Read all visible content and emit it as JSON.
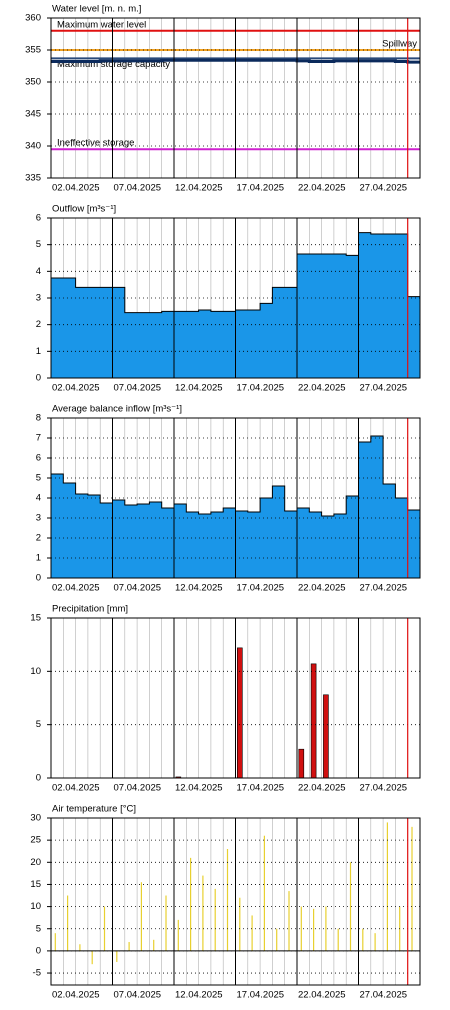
{
  "chart_data": [
    {
      "type": "line",
      "title": "Water level [m. n. m.]",
      "x": [
        "02.04.2025",
        "03.04.2025",
        "04.04.2025",
        "05.04.2025",
        "06.04.2025",
        "07.04.2025",
        "08.04.2025",
        "09.04.2025",
        "10.04.2025",
        "11.04.2025",
        "12.04.2025",
        "13.04.2025",
        "14.04.2025",
        "15.04.2025",
        "16.04.2025",
        "17.04.2025",
        "18.04.2025",
        "19.04.2025",
        "20.04.2025",
        "21.04.2025",
        "22.04.2025",
        "23.04.2025",
        "24.04.2025",
        "25.04.2025",
        "26.04.2025",
        "27.04.2025",
        "28.04.2025",
        "29.04.2025",
        "30.04.2025",
        "01.05.2025"
      ],
      "values": [
        353.2,
        353.2,
        353.2,
        353.2,
        353.3,
        353.3,
        353.3,
        353.3,
        353.3,
        353.4,
        353.4,
        353.4,
        353.4,
        353.4,
        353.4,
        353.4,
        353.4,
        353.4,
        353.4,
        353.4,
        353.3,
        353.2,
        353.2,
        353.3,
        353.3,
        353.3,
        353.3,
        353.3,
        353.2,
        353.1
      ],
      "color": "#0b2a5c",
      "reference_lines": [
        {
          "label": "Maximum water level",
          "value": 358,
          "color": "#e01010"
        },
        {
          "label": "Spillway",
          "value": 355,
          "color": "#f0a020"
        },
        {
          "label": "Maximum storage capacity",
          "value": 353.7,
          "color": "#2a4a7a"
        },
        {
          "label": "Ineffective storage",
          "value": 339.5,
          "color": "#d020d0"
        }
      ],
      "xlim": [
        "02.04.2025",
        "02.05.2025"
      ],
      "xticks": [
        "02.04.2025",
        "07.04.2025",
        "12.04.2025",
        "17.04.2025",
        "22.04.2025",
        "27.04.2025"
      ],
      "ylim": [
        335,
        360
      ],
      "yticks": [
        335,
        340,
        345,
        350,
        355,
        360
      ],
      "grid": true,
      "marker_date": "01.05.2025",
      "marker_color": "#e01010"
    },
    {
      "type": "step",
      "title": "Outflow [m³s⁻¹]",
      "x": [
        "02.04.2025",
        "03.04.2025",
        "04.04.2025",
        "05.04.2025",
        "06.04.2025",
        "07.04.2025",
        "08.04.2025",
        "09.04.2025",
        "10.04.2025",
        "11.04.2025",
        "12.04.2025",
        "13.04.2025",
        "14.04.2025",
        "15.04.2025",
        "16.04.2025",
        "17.04.2025",
        "18.04.2025",
        "19.04.2025",
        "20.04.2025",
        "21.04.2025",
        "22.04.2025",
        "23.04.2025",
        "24.04.2025",
        "25.04.2025",
        "26.04.2025",
        "27.04.2025",
        "28.04.2025",
        "29.04.2025",
        "30.04.2025",
        "01.05.2025"
      ],
      "values": [
        3.75,
        3.75,
        3.4,
        3.4,
        3.4,
        3.4,
        2.45,
        2.45,
        2.45,
        2.5,
        2.5,
        2.5,
        2.55,
        2.5,
        2.5,
        2.55,
        2.55,
        2.8,
        3.4,
        3.4,
        4.65,
        4.65,
        4.65,
        4.65,
        4.6,
        5.45,
        5.4,
        5.4,
        5.4,
        3.05
      ],
      "color": "#1a96e8",
      "xlim": [
        "02.04.2025",
        "02.05.2025"
      ],
      "xticks": [
        "02.04.2025",
        "07.04.2025",
        "12.04.2025",
        "17.04.2025",
        "22.04.2025",
        "27.04.2025"
      ],
      "ylim": [
        0,
        6
      ],
      "yticks": [
        0,
        1,
        2,
        3,
        4,
        5,
        6
      ],
      "grid": true,
      "marker_date": "01.05.2025",
      "marker_color": "#e01010"
    },
    {
      "type": "step",
      "title": "Average balance inflow  [m³s⁻¹]",
      "x": [
        "02.04.2025",
        "03.04.2025",
        "04.04.2025",
        "05.04.2025",
        "06.04.2025",
        "07.04.2025",
        "08.04.2025",
        "09.04.2025",
        "10.04.2025",
        "11.04.2025",
        "12.04.2025",
        "13.04.2025",
        "14.04.2025",
        "15.04.2025",
        "16.04.2025",
        "17.04.2025",
        "18.04.2025",
        "19.04.2025",
        "20.04.2025",
        "21.04.2025",
        "22.04.2025",
        "23.04.2025",
        "24.04.2025",
        "25.04.2025",
        "26.04.2025",
        "27.04.2025",
        "28.04.2025",
        "29.04.2025",
        "30.04.2025",
        "01.05.2025"
      ],
      "values": [
        5.2,
        4.75,
        4.2,
        4.15,
        3.75,
        3.9,
        3.65,
        3.7,
        3.8,
        3.5,
        3.7,
        3.3,
        3.2,
        3.3,
        3.5,
        3.35,
        3.3,
        4.0,
        4.6,
        3.35,
        3.5,
        3.3,
        3.1,
        3.2,
        4.1,
        6.8,
        7.1,
        4.7,
        4.0,
        3.4
      ],
      "color": "#1a96e8",
      "xlim": [
        "02.04.2025",
        "02.05.2025"
      ],
      "xticks": [
        "02.04.2025",
        "07.04.2025",
        "12.04.2025",
        "17.04.2025",
        "22.04.2025",
        "27.04.2025"
      ],
      "ylim": [
        0,
        8
      ],
      "yticks": [
        0,
        1,
        2,
        3,
        4,
        5,
        6,
        7,
        8
      ],
      "grid": true,
      "marker_date": "01.05.2025",
      "marker_color": "#e01010"
    },
    {
      "type": "bar",
      "title": "Precipitation [mm]",
      "x": [
        "02.04.2025",
        "03.04.2025",
        "04.04.2025",
        "05.04.2025",
        "06.04.2025",
        "07.04.2025",
        "08.04.2025",
        "09.04.2025",
        "10.04.2025",
        "11.04.2025",
        "12.04.2025",
        "13.04.2025",
        "14.04.2025",
        "15.04.2025",
        "16.04.2025",
        "17.04.2025",
        "18.04.2025",
        "19.04.2025",
        "20.04.2025",
        "21.04.2025",
        "22.04.2025",
        "23.04.2025",
        "24.04.2025",
        "25.04.2025",
        "26.04.2025",
        "27.04.2025",
        "28.04.2025",
        "29.04.2025",
        "30.04.2025",
        "01.05.2025"
      ],
      "values": [
        0,
        0,
        0,
        0,
        0,
        0,
        0,
        0,
        0,
        0,
        0.1,
        0,
        0,
        0,
        0,
        12.2,
        0,
        0,
        0,
        0,
        2.7,
        10.7,
        7.8,
        0,
        0,
        0,
        0,
        0,
        0,
        0
      ],
      "color": "#d01010",
      "xlim": [
        "02.04.2025",
        "02.05.2025"
      ],
      "xticks": [
        "02.04.2025",
        "07.04.2025",
        "12.04.2025",
        "17.04.2025",
        "22.04.2025",
        "27.04.2025"
      ],
      "ylim": [
        0,
        15
      ],
      "yticks": [
        0,
        5,
        10,
        15
      ],
      "grid": true,
      "marker_date": "01.05.2025",
      "marker_color": "#e01010"
    },
    {
      "type": "bar",
      "title": "Air temperature [°C]",
      "x": [
        "02.04.2025",
        "03.04.2025",
        "04.04.2025",
        "05.04.2025",
        "06.04.2025",
        "07.04.2025",
        "08.04.2025",
        "09.04.2025",
        "10.04.2025",
        "11.04.2025",
        "12.04.2025",
        "13.04.2025",
        "14.04.2025",
        "15.04.2025",
        "16.04.2025",
        "17.04.2025",
        "18.04.2025",
        "19.04.2025",
        "20.04.2025",
        "21.04.2025",
        "22.04.2025",
        "23.04.2025",
        "24.04.2025",
        "25.04.2025",
        "26.04.2025",
        "27.04.2025",
        "28.04.2025",
        "29.04.2025",
        "30.04.2025",
        "01.05.2025"
      ],
      "values": [
        4,
        12.5,
        1.5,
        -3,
        10,
        -2.5,
        2,
        15.5,
        2.5,
        12.5,
        7,
        21,
        17,
        14,
        23,
        12,
        8,
        26,
        5,
        13.5,
        10,
        9.5,
        10,
        5,
        20,
        5,
        4,
        29,
        10,
        28
      ],
      "color": "#e8d030",
      "xlim": [
        "02.04.2025",
        "02.05.2025"
      ],
      "xticks": [
        "02.04.2025",
        "07.04.2025",
        "12.04.2025",
        "17.04.2025",
        "22.04.2025",
        "27.04.2025"
      ],
      "ylim": [
        -7.7,
        30
      ],
      "yticks": [
        -5,
        0,
        5,
        10,
        15,
        20,
        25,
        30
      ],
      "grid": true,
      "marker_date": "01.05.2025",
      "marker_color": "#e01010"
    }
  ]
}
